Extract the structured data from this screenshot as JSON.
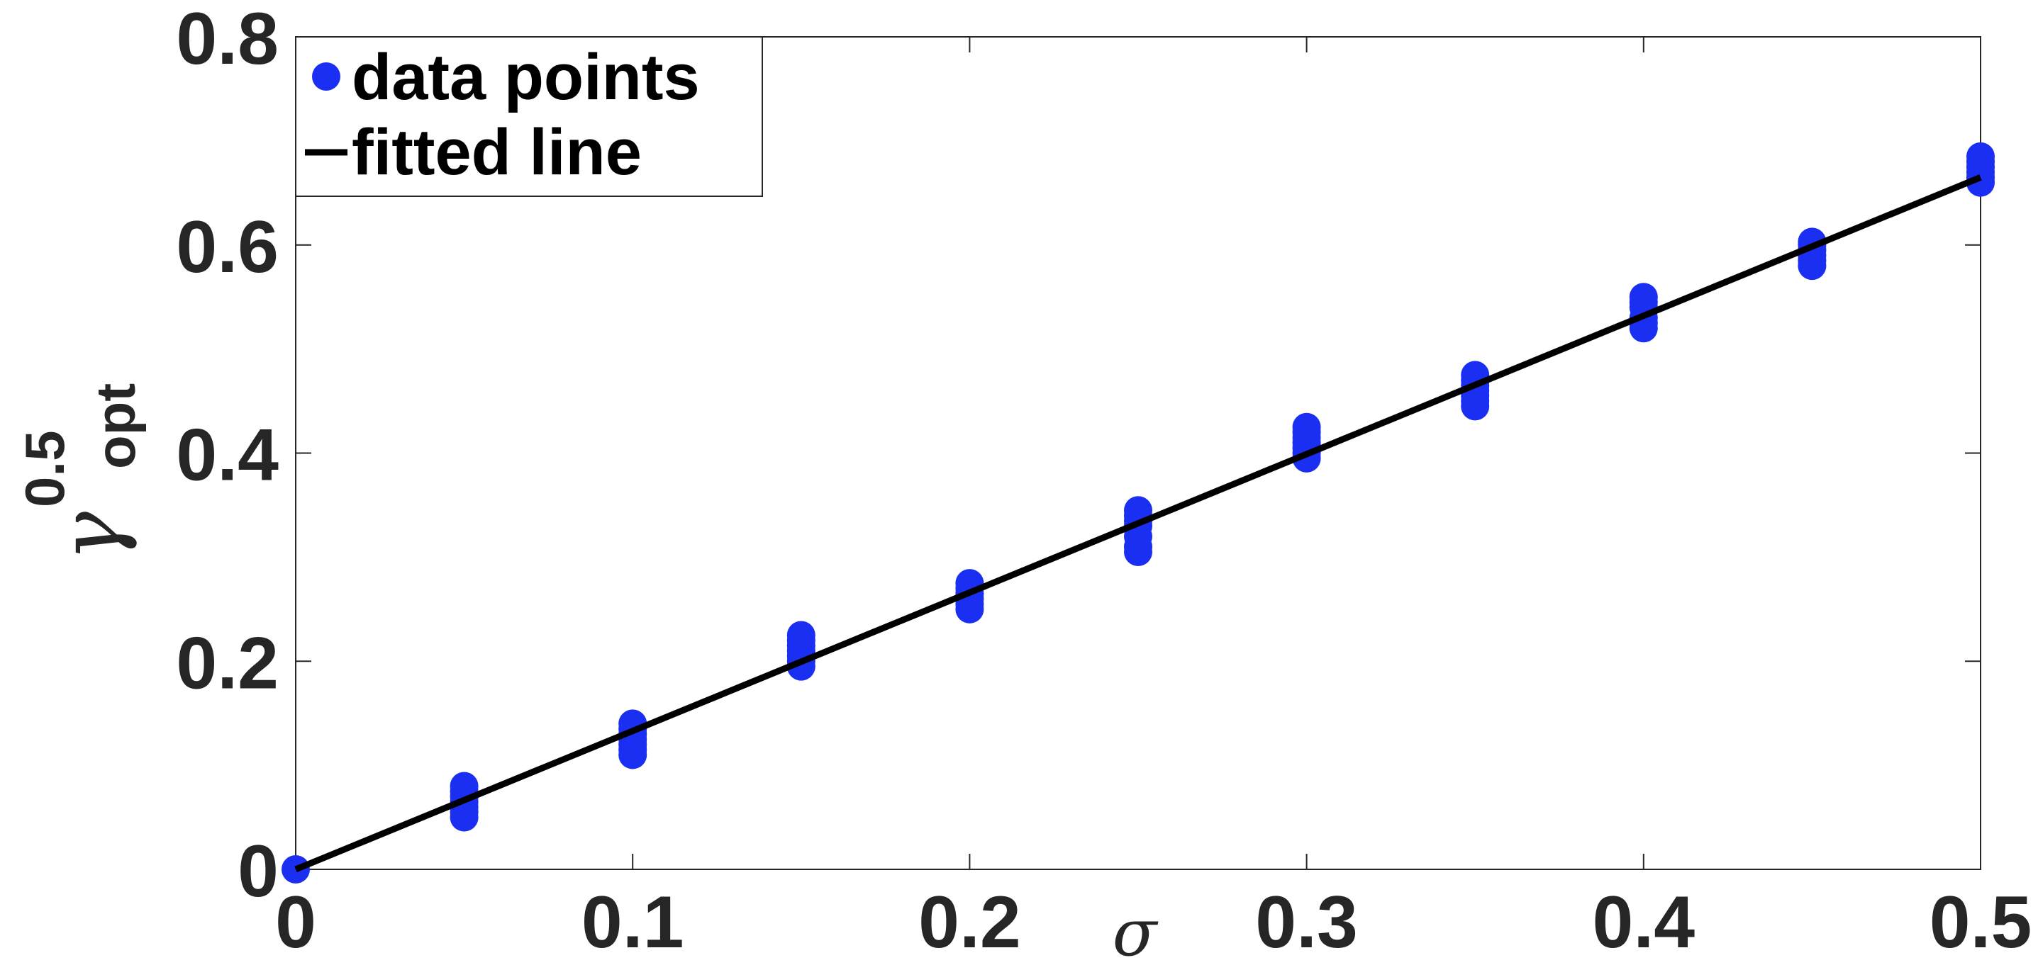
{
  "colors": {
    "data_points": "#1a2ff2",
    "fitted_line": "#000000",
    "text": "#262626",
    "axes": "#262626"
  },
  "chart_data": {
    "type": "scatter",
    "xlabel": "σ",
    "ylabel": {
      "base": "γ",
      "superscript": "0.5",
      "subscript": "opt"
    },
    "xlim": [
      0,
      0.5
    ],
    "ylim": [
      0,
      0.8
    ],
    "x_ticks": [
      "0",
      "0.1",
      "0.2",
      "0.3",
      "0.4",
      "0.5"
    ],
    "y_ticks": [
      "0",
      "0.2",
      "0.4",
      "0.6",
      "0.8"
    ],
    "grid": false,
    "legend_position": "top-left",
    "legend": [
      {
        "label": "data points",
        "marker": "filled-circle"
      },
      {
        "label": "fitted line",
        "marker": "line"
      }
    ],
    "series": [
      {
        "name": "data points",
        "type": "scatter",
        "points": [
          [
            0,
            0
          ],
          [
            0.05,
            0.05
          ],
          [
            0.05,
            0.055
          ],
          [
            0.05,
            0.06
          ],
          [
            0.05,
            0.065
          ],
          [
            0.05,
            0.07
          ],
          [
            0.05,
            0.075
          ],
          [
            0.05,
            0.08
          ],
          [
            0.1,
            0.11
          ],
          [
            0.1,
            0.115
          ],
          [
            0.1,
            0.12
          ],
          [
            0.1,
            0.125
          ],
          [
            0.1,
            0.13
          ],
          [
            0.1,
            0.135
          ],
          [
            0.1,
            0.14
          ],
          [
            0.15,
            0.195
          ],
          [
            0.15,
            0.2
          ],
          [
            0.15,
            0.205
          ],
          [
            0.15,
            0.21
          ],
          [
            0.15,
            0.215
          ],
          [
            0.15,
            0.22
          ],
          [
            0.15,
            0.225
          ],
          [
            0.2,
            0.25
          ],
          [
            0.2,
            0.255
          ],
          [
            0.2,
            0.26
          ],
          [
            0.2,
            0.265
          ],
          [
            0.2,
            0.27
          ],
          [
            0.2,
            0.275
          ],
          [
            0.25,
            0.305
          ],
          [
            0.25,
            0.31
          ],
          [
            0.25,
            0.32
          ],
          [
            0.25,
            0.33
          ],
          [
            0.25,
            0.335
          ],
          [
            0.25,
            0.34
          ],
          [
            0.25,
            0.345
          ],
          [
            0.3,
            0.395
          ],
          [
            0.3,
            0.4
          ],
          [
            0.3,
            0.405
          ],
          [
            0.3,
            0.41
          ],
          [
            0.3,
            0.415
          ],
          [
            0.3,
            0.42
          ],
          [
            0.3,
            0.425
          ],
          [
            0.35,
            0.445
          ],
          [
            0.35,
            0.45
          ],
          [
            0.35,
            0.455
          ],
          [
            0.35,
            0.46
          ],
          [
            0.35,
            0.465
          ],
          [
            0.35,
            0.47
          ],
          [
            0.35,
            0.475
          ],
          [
            0.4,
            0.52
          ],
          [
            0.4,
            0.525
          ],
          [
            0.4,
            0.53
          ],
          [
            0.4,
            0.54
          ],
          [
            0.4,
            0.545
          ],
          [
            0.4,
            0.55
          ],
          [
            0.45,
            0.58
          ],
          [
            0.45,
            0.585
          ],
          [
            0.45,
            0.59
          ],
          [
            0.45,
            0.595
          ],
          [
            0.45,
            0.6
          ],
          [
            0.45,
            0.603
          ],
          [
            0.5,
            0.66
          ],
          [
            0.5,
            0.665
          ],
          [
            0.5,
            0.67
          ],
          [
            0.5,
            0.675
          ],
          [
            0.5,
            0.68
          ],
          [
            0.5,
            0.685
          ]
        ]
      },
      {
        "name": "fitted line",
        "type": "line",
        "x": [
          0,
          0.5
        ],
        "y": [
          0,
          0.665
        ]
      }
    ]
  }
}
